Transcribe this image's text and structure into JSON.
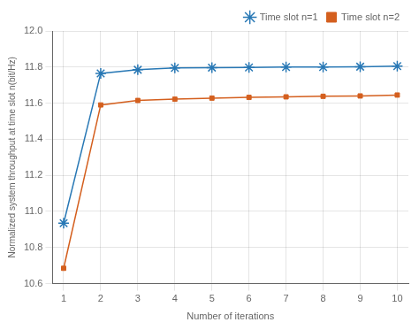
{
  "chart_data": {
    "type": "line",
    "x": [
      1,
      2,
      3,
      4,
      5,
      6,
      7,
      8,
      9,
      10
    ],
    "series": [
      {
        "name": "Time slot n=1",
        "color": "#2878b5",
        "marker": "star",
        "values": [
          10.935,
          11.765,
          11.785,
          11.795,
          11.797,
          11.798,
          11.8,
          11.8,
          11.802,
          11.805
        ]
      },
      {
        "name": "Time slot n=2",
        "color": "#d45f1e",
        "marker": "square",
        "values": [
          10.685,
          11.59,
          11.615,
          11.622,
          11.628,
          11.632,
          11.635,
          11.638,
          11.64,
          11.645
        ]
      }
    ],
    "xlabel": "Number of iterations",
    "ylabel": "Normalized system throughput at time slot n(bit/Hz)",
    "xlim": [
      0.7,
      10.3
    ],
    "ylim": [
      10.6,
      12.0
    ],
    "xticks": [
      1,
      2,
      3,
      4,
      5,
      6,
      7,
      8,
      9,
      10
    ],
    "yticks": [
      10.6,
      10.8,
      {
        "value": 11.0,
        "label": "11.0"
      },
      11.2,
      11.4,
      11.6,
      11.8,
      {
        "value": 12.0,
        "label": "12.0"
      }
    ],
    "grid": true,
    "legend": "upper right"
  }
}
